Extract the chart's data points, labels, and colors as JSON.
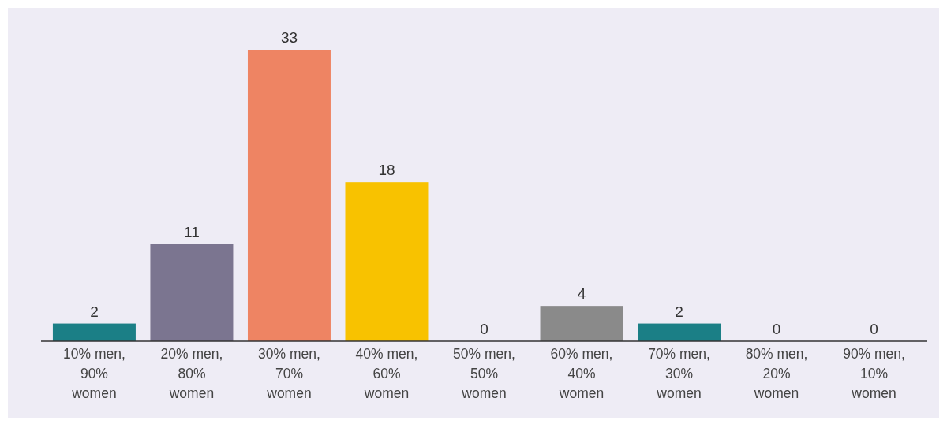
{
  "chart_data": {
    "type": "bar",
    "categories": [
      "10% men, 90% women",
      "20% men, 80% women",
      "30% men, 70% women",
      "40% men, 60% women",
      "50% men, 50% women",
      "60% men, 40% women",
      "70% men, 30% women",
      "80% men, 20% women",
      "90% men, 10% women"
    ],
    "values": [
      2,
      11,
      33,
      18,
      0,
      4,
      2,
      0,
      0
    ],
    "colors": [
      "#1b7f86",
      "#7b7590",
      "#ee8463",
      "#f8c200",
      "#8a8a8a",
      "#8a8a8a",
      "#1b7f86",
      "#8a8a8a",
      "#8a8a8a"
    ],
    "data_labels": true
  }
}
